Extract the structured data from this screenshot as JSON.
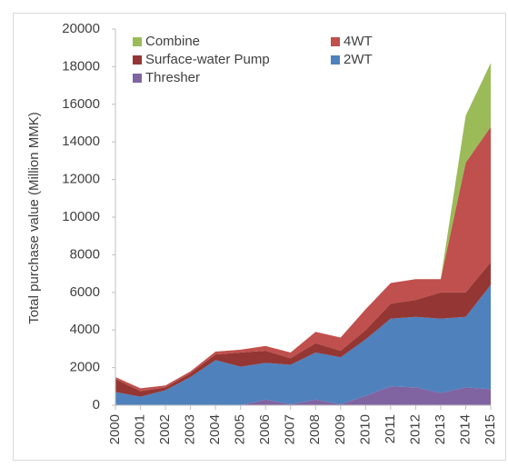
{
  "chart_data": {
    "type": "stacked_area",
    "y_label": "Total purchase value (Million MMK)",
    "categories": [
      "2000",
      "2001",
      "2002",
      "2003",
      "2004",
      "2005",
      "2006",
      "2007",
      "2008",
      "2009",
      "2010",
      "2011",
      "2012",
      "2013",
      "2014",
      "2015"
    ],
    "series": [
      {
        "name": "Thresher",
        "color": "#8064a2",
        "values": [
          0,
          0,
          0,
          0,
          0,
          0,
          300,
          50,
          300,
          50,
          500,
          1000,
          950,
          650,
          950,
          850
        ]
      },
      {
        "name": "2WT",
        "color": "#4f81bd",
        "values": [
          700,
          450,
          800,
          1500,
          2400,
          2050,
          1950,
          2100,
          2500,
          2500,
          3000,
          3600,
          3750,
          3950,
          3750,
          5550
        ]
      },
      {
        "name": "Surface-water Pump",
        "color": "#943634",
        "values": [
          700,
          300,
          150,
          200,
          300,
          750,
          650,
          350,
          500,
          350,
          500,
          800,
          900,
          1400,
          1300,
          1200
        ]
      },
      {
        "name": "4WT",
        "color": "#c0504d",
        "values": [
          100,
          150,
          100,
          100,
          150,
          150,
          250,
          300,
          600,
          700,
          1100,
          1100,
          1100,
          700,
          6900,
          7200
        ]
      },
      {
        "name": "Combine",
        "color": "#9bbb59",
        "values": [
          0,
          0,
          0,
          0,
          0,
          0,
          0,
          0,
          0,
          0,
          0,
          0,
          0,
          0,
          2500,
          3400
        ]
      }
    ],
    "ylim": [
      0,
      20000
    ],
    "yticks": [
      0,
      2000,
      4000,
      6000,
      8000,
      10000,
      12000,
      14000,
      16000,
      18000,
      20000
    ],
    "grid": false
  }
}
